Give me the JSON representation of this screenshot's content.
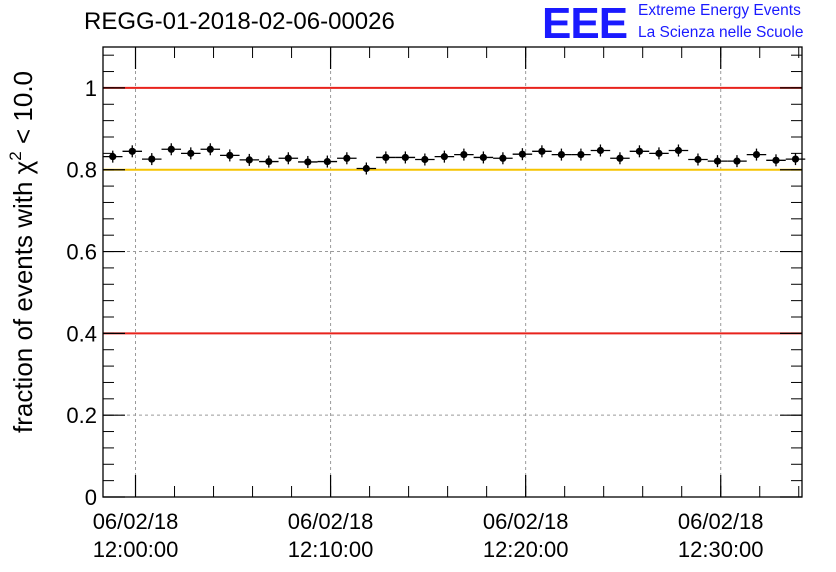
{
  "chart_data": {
    "type": "scatter",
    "title": "REGG-01-2018-02-06-00026",
    "ylabel": "fraction of events with χ² < 10.0",
    "xlabel": "",
    "x_unit": "time",
    "xlim": [
      "2018-02-06 11:58:20",
      "2018-02-06 12:34:10"
    ],
    "ylim": [
      0,
      1.1
    ],
    "grid": true,
    "y_ticks": [
      {
        "value": 0,
        "label": "0"
      },
      {
        "value": 0.2,
        "label": "0.2"
      },
      {
        "value": 0.4,
        "label": "0.4"
      },
      {
        "value": 0.6,
        "label": "0.6"
      },
      {
        "value": 0.8,
        "label": "0.8"
      },
      {
        "value": 1.0,
        "label": "1"
      }
    ],
    "x_ticks": [
      {
        "time": "2018-02-06 12:00:00",
        "date_label": "06/02/18",
        "time_label": "12:00:00"
      },
      {
        "time": "2018-02-06 12:10:00",
        "date_label": "06/02/18",
        "time_label": "12:10:00"
      },
      {
        "time": "2018-02-06 12:20:00",
        "date_label": "06/02/18",
        "time_label": "12:20:00"
      },
      {
        "time": "2018-02-06 12:30:00",
        "date_label": "06/02/18",
        "time_label": "12:30:00"
      }
    ],
    "reference_lines": [
      {
        "y": 1.0,
        "color": "#e8231c"
      },
      {
        "y": 0.8,
        "color": "#f5c400"
      },
      {
        "y": 0.4,
        "color": "#e8231c"
      }
    ],
    "series_color": "#000000",
    "points": [
      {
        "x": "2018-02-06 11:58:50",
        "y": 0.832
      },
      {
        "x": "2018-02-06 11:59:50",
        "y": 0.845
      },
      {
        "x": "2018-02-06 12:00:50",
        "y": 0.826
      },
      {
        "x": "2018-02-06 12:01:50",
        "y": 0.85
      },
      {
        "x": "2018-02-06 12:02:50",
        "y": 0.84
      },
      {
        "x": "2018-02-06 12:03:50",
        "y": 0.85
      },
      {
        "x": "2018-02-06 12:04:50",
        "y": 0.835
      },
      {
        "x": "2018-02-06 12:05:50",
        "y": 0.824
      },
      {
        "x": "2018-02-06 12:06:50",
        "y": 0.82
      },
      {
        "x": "2018-02-06 12:07:50",
        "y": 0.828
      },
      {
        "x": "2018-02-06 12:08:50",
        "y": 0.819
      },
      {
        "x": "2018-02-06 12:09:50",
        "y": 0.82
      },
      {
        "x": "2018-02-06 12:10:50",
        "y": 0.828
      },
      {
        "x": "2018-02-06 12:11:50",
        "y": 0.803
      },
      {
        "x": "2018-02-06 12:12:50",
        "y": 0.83
      },
      {
        "x": "2018-02-06 12:13:50",
        "y": 0.83
      },
      {
        "x": "2018-02-06 12:14:50",
        "y": 0.825
      },
      {
        "x": "2018-02-06 12:15:50",
        "y": 0.832
      },
      {
        "x": "2018-02-06 12:16:50",
        "y": 0.837
      },
      {
        "x": "2018-02-06 12:17:50",
        "y": 0.83
      },
      {
        "x": "2018-02-06 12:18:50",
        "y": 0.828
      },
      {
        "x": "2018-02-06 12:19:50",
        "y": 0.838
      },
      {
        "x": "2018-02-06 12:20:50",
        "y": 0.845
      },
      {
        "x": "2018-02-06 12:21:50",
        "y": 0.837
      },
      {
        "x": "2018-02-06 12:22:50",
        "y": 0.837
      },
      {
        "x": "2018-02-06 12:23:50",
        "y": 0.847
      },
      {
        "x": "2018-02-06 12:24:50",
        "y": 0.828
      },
      {
        "x": "2018-02-06 12:25:50",
        "y": 0.845
      },
      {
        "x": "2018-02-06 12:26:50",
        "y": 0.84
      },
      {
        "x": "2018-02-06 12:27:50",
        "y": 0.847
      },
      {
        "x": "2018-02-06 12:28:50",
        "y": 0.825
      },
      {
        "x": "2018-02-06 12:29:50",
        "y": 0.821
      },
      {
        "x": "2018-02-06 12:30:50",
        "y": 0.821
      },
      {
        "x": "2018-02-06 12:31:50",
        "y": 0.837
      },
      {
        "x": "2018-02-06 12:32:50",
        "y": 0.823
      },
      {
        "x": "2018-02-06 12:33:50",
        "y": 0.826
      }
    ]
  },
  "logo": {
    "mark": "EEE",
    "line1": "Extreme Energy Events",
    "line2": "La Scienza nelle Scuole",
    "color": "#1a1aff"
  }
}
